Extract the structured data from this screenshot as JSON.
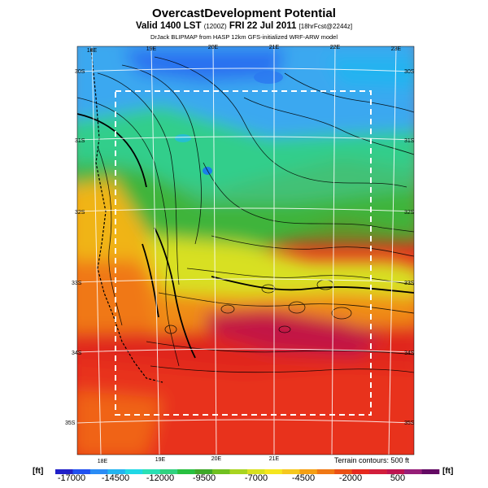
{
  "title": "OvercastDevelopment Potential",
  "subtitle": {
    "valid": "Valid 1400 LST",
    "utc": "(1200Z)",
    "date": "FRI 22 Jul 2011",
    "fcst": "[18hrFcst@2244z]"
  },
  "credit": "DrJack BLIPMAP from HASP 12km GFS-initialized WRF-ARW model",
  "lon_ticks_top": [
    "18E",
    "19E",
    "20E",
    "21E",
    "22E",
    "23E"
  ],
  "lon_ticks_bottom": [
    "18E",
    "19E",
    "20E",
    "21E"
  ],
  "lat_ticks_left": [
    "30S",
    "31S",
    "32S",
    "33S",
    "34S",
    "35S"
  ],
  "lat_ticks_right": [
    "30S",
    "31S",
    "32S",
    "33S",
    "34S",
    "35S"
  ],
  "terrain_note": "Terrain contours: 500 ft",
  "colorbar": {
    "unit": "[ft]",
    "labels": [
      "-17000",
      "-14500",
      "-12000",
      "-9500",
      "-7000",
      "-4500",
      "-2000",
      "500"
    ],
    "colors": [
      "#2020c8",
      "#2050f0",
      "#2a8cf5",
      "#22b4f0",
      "#20d8e6",
      "#2ae0b4",
      "#30d280",
      "#28c040",
      "#3ea828",
      "#70c020",
      "#a8d420",
      "#d8e020",
      "#f5e61e",
      "#f5c81e",
      "#f5a014",
      "#f07814",
      "#eb5014",
      "#e6281e",
      "#d21e3c",
      "#be1450",
      "#961e78",
      "#640a64"
    ]
  }
}
